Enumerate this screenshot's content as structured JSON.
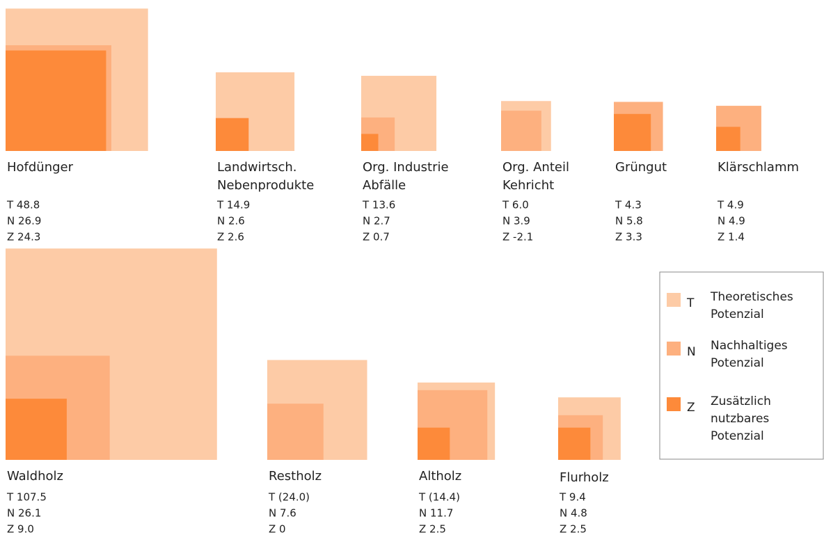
{
  "chart_data": {
    "type": "nested-squares",
    "colors": [
      "#fdcba6",
      "#fdb07f",
      "#fd8a3a"
    ],
    "items": [
      {
        "name": [
          "Hofdünger"
        ],
        "values": [
          48.8,
          26.9,
          24.3
        ],
        "value_labels": [
          "T 48.8",
          "N 26.9",
          "Z 24.3"
        ]
      },
      {
        "name": [
          "Landwirtsch.",
          "Nebenprodukte"
        ],
        "values": [
          14.9,
          2.6,
          2.6
        ],
        "value_labels": [
          "T 14.9",
          "N 2.6",
          "Z 2.6"
        ]
      },
      {
        "name": [
          "Org. Industrie",
          "Abfälle"
        ],
        "values": [
          13.6,
          2.7,
          0.7
        ],
        "value_labels": [
          "T 13.6",
          "N 2.7",
          "Z 0.7"
        ]
      },
      {
        "name": [
          "Org. Anteil",
          "Kehricht"
        ],
        "values": [
          6.0,
          3.9,
          -2.1
        ],
        "value_labels": [
          "T 6.0",
          "N 3.9",
          "Z -2.1"
        ]
      },
      {
        "name": [
          "Grüngut"
        ],
        "values": [
          4.3,
          5.8,
          3.3
        ],
        "value_labels": [
          "T 4.3",
          "N 5.8",
          "Z 3.3"
        ]
      },
      {
        "name": [
          "Klärschlamm"
        ],
        "values": [
          4.9,
          4.9,
          1.4
        ],
        "value_labels": [
          "T 4.9",
          "N 4.9",
          "Z 1.4"
        ]
      },
      {
        "name": [
          "Waldholz"
        ],
        "values": [
          107.5,
          26.1,
          9.0
        ],
        "value_labels": [
          "T 107.5",
          "N 26.1",
          "Z 9.0"
        ]
      },
      {
        "name": [
          "Restholz"
        ],
        "values": [
          24.0,
          7.6,
          0
        ],
        "value_labels": [
          "T (24.0)",
          "N 7.6",
          "Z 0"
        ]
      },
      {
        "name": [
          "Altholz"
        ],
        "values": [
          14.4,
          11.7,
          2.5
        ],
        "value_labels": [
          "T (14.4)",
          "N 11.7",
          "Z 2.5"
        ]
      },
      {
        "name": [
          "Flurholz"
        ],
        "values": [
          9.4,
          4.8,
          2.5
        ],
        "value_labels": [
          "T 9.4",
          "N 4.8",
          "Z 2.5"
        ]
      }
    ],
    "legend": [
      {
        "key": "T",
        "label": [
          "Theoretisches",
          "Potenzial"
        ]
      },
      {
        "key": "N",
        "label": [
          "Nachhaltiges",
          "Potenzial"
        ]
      },
      {
        "key": "Z",
        "label": [
          "Zusätzlich",
          "nutzbares",
          "Potenzial"
        ]
      }
    ]
  }
}
